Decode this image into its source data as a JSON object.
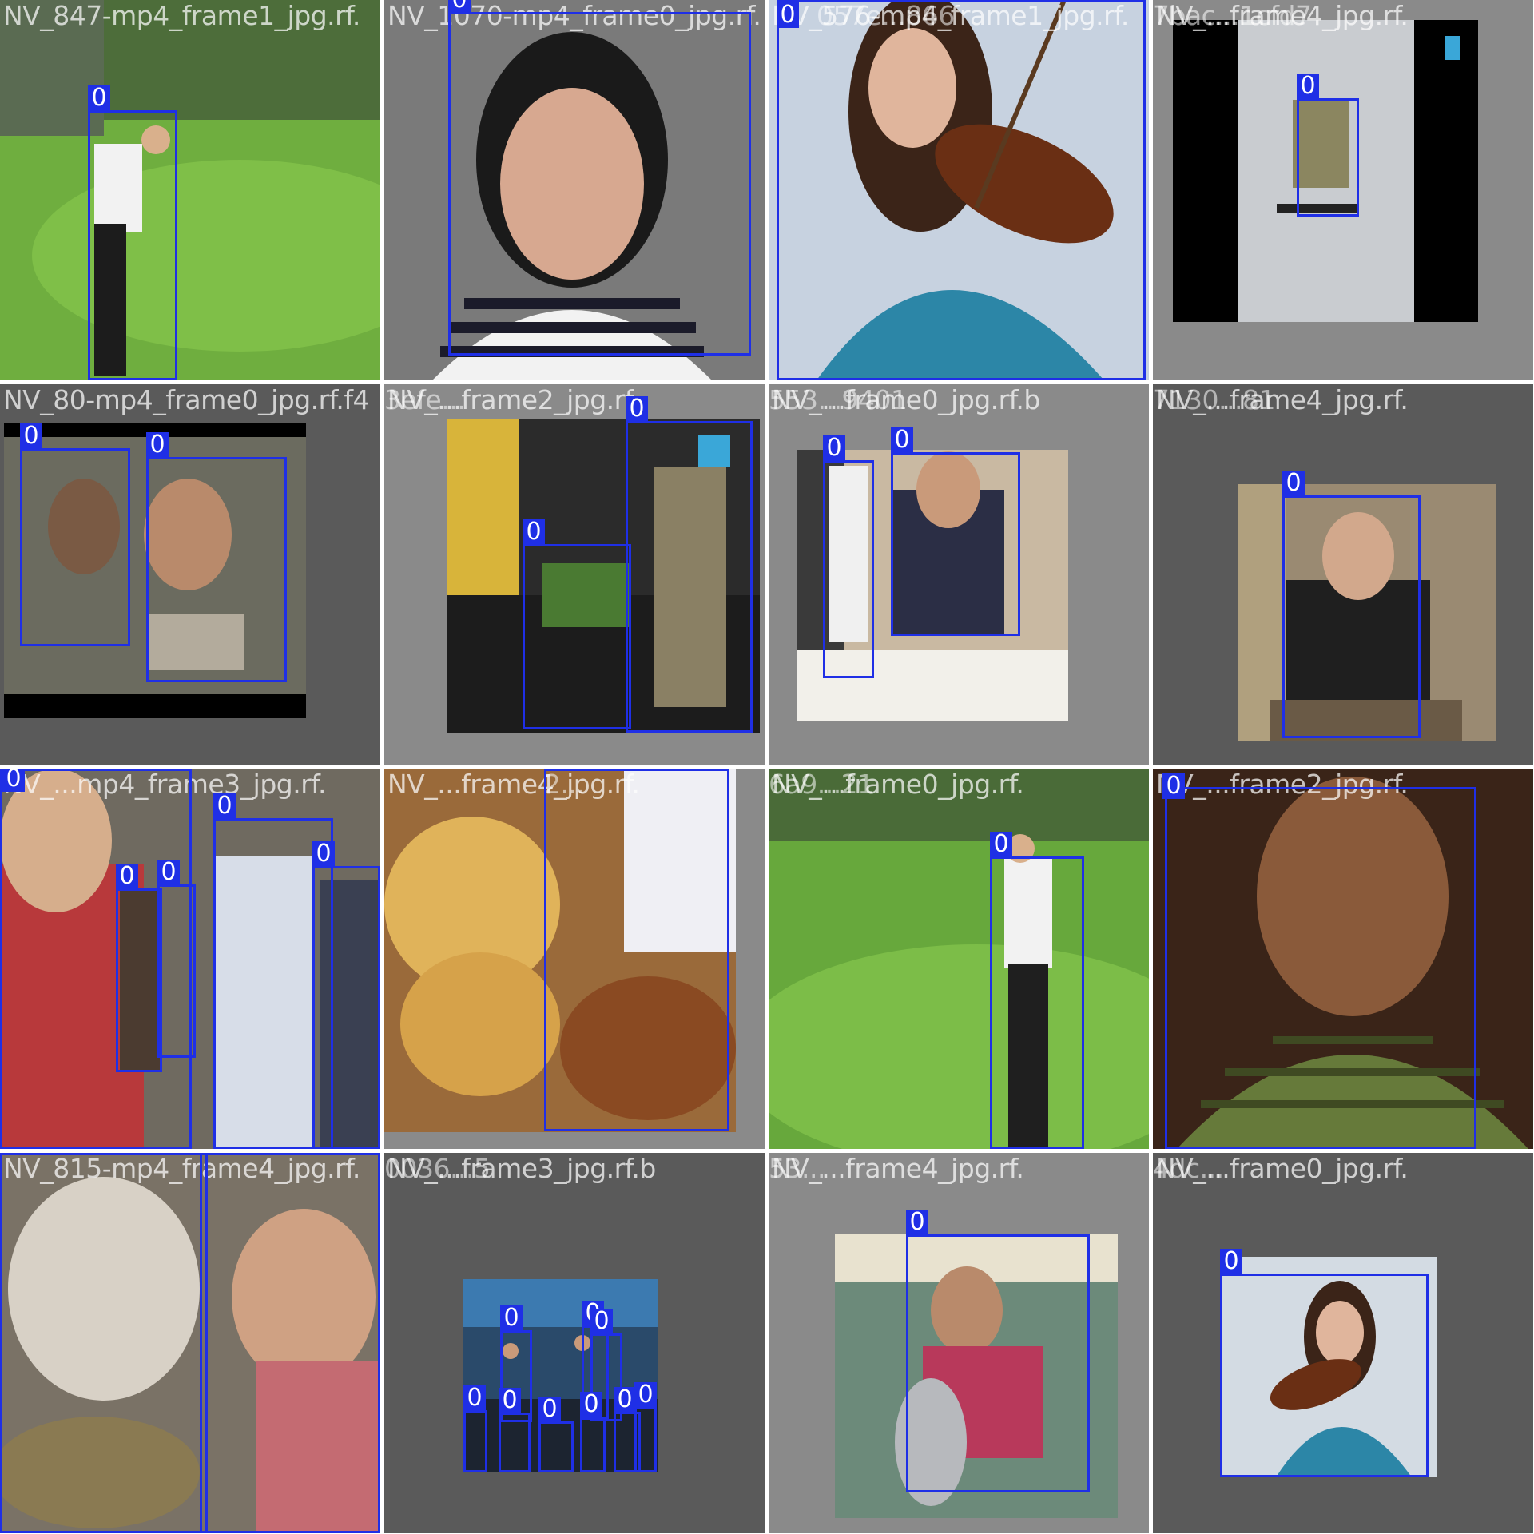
{
  "grid": {
    "columns": 4,
    "rows": 4
  },
  "colors": {
    "box": "#1f2fe6",
    "label_text": "#ffffff",
    "letterbox": "#000000",
    "pad_gray": "#8a8a8a"
  },
  "tiles": [
    {
      "title": "NV_847-mp4_frame1_jpg.rf.",
      "overlap_title": "",
      "scene": "golfer on green fairway",
      "label": "0"
    },
    {
      "title": "NV_1070-mp4_frame0_jpg.rf.",
      "overlap_title": "",
      "scene": "woman in striped shirt",
      "label": "0"
    },
    {
      "title": "NV_576-mp4_frame1_jpg.rf.",
      "overlap_title": "057e...866",
      "scene": "woman playing violin",
      "label": "0"
    },
    {
      "title": "NV_...frame4_jpg.rf.",
      "overlap_title": "7bac...1cfd7",
      "scene": "athlete in gym with black side bars",
      "label": "0"
    },
    {
      "title": "NV_80-mp4_frame0_jpg.rf.f4",
      "overlap_title": "",
      "scene": "two men in car",
      "label": "0"
    },
    {
      "title": "NV_...frame2_jpg.rf.",
      "overlap_title": "3efe...",
      "scene": "pushups with soldier",
      "label": "0"
    },
    {
      "title": "NV_...frame0_jpg.rf.b",
      "overlap_title": "553...9401",
      "scene": "man at dining table",
      "label": "0"
    },
    {
      "title": "NV_...frame4_jpg.rf.",
      "overlap_title": "7130...81",
      "scene": "man seated in office",
      "label": "0"
    },
    {
      "title": "NV_...mp4_frame3_jpg.rf.",
      "overlap_title": "",
      "scene": "crowd on street",
      "label": "0"
    },
    {
      "title": "NV_...frame4_jpg.rf.",
      "overlap_title": "2...",
      "scene": "food platters feast",
      "label": "0"
    },
    {
      "title": "NV_...frame0_jpg.rf.",
      "overlap_title": "6a9...21",
      "scene": "golfer on fairway",
      "label": "0"
    },
    {
      "title": "NV_...frame2_jpg.rf.",
      "overlap_title": "",
      "scene": "smiling man in plaid",
      "label": "0"
    },
    {
      "title": "NV_815-mp4_frame4_jpg.rf.",
      "overlap_title": "",
      "scene": "men eating",
      "label": "0"
    },
    {
      "title": "NV_...frame3_jpg.rf.b",
      "overlap_title": "0036...5",
      "scene": "tv studio audience",
      "label": "0"
    },
    {
      "title": "NV_...frame4_jpg.rf.",
      "overlap_title": "53...",
      "scene": "man at restaurant",
      "label": "0"
    },
    {
      "title": "NV_...frame0_jpg.rf.",
      "overlap_title": "4dc...",
      "scene": "violinist small",
      "label": "0"
    }
  ]
}
